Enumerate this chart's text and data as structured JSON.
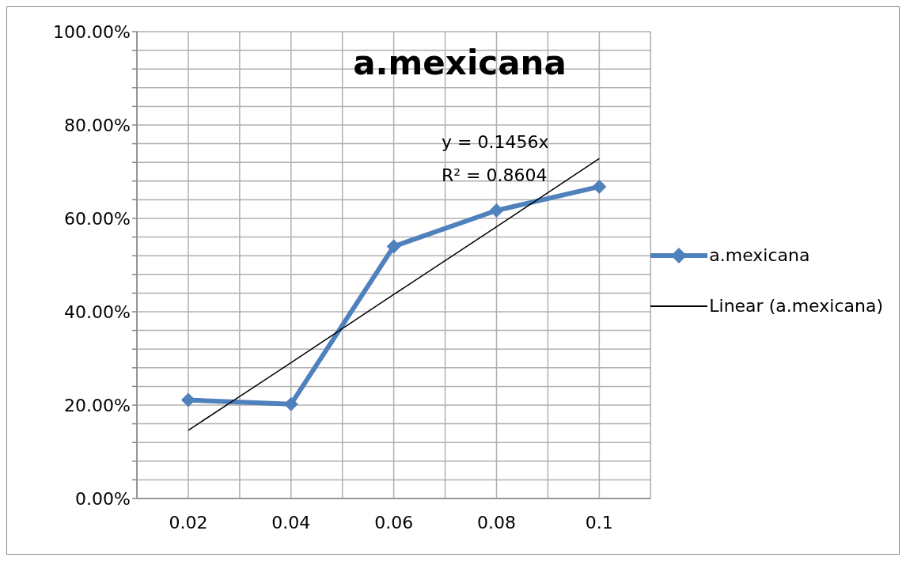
{
  "chart_data": {
    "type": "line",
    "title": "a.mexicana",
    "categories": [
      "0.02",
      "0.04",
      "0.06",
      "0.08",
      "0.1"
    ],
    "series": [
      {
        "name": "a.mexicana",
        "color": "#4f81bd",
        "marker": "diamond",
        "values": [
          21.1,
          20.2,
          54.0,
          61.7,
          66.8
        ]
      },
      {
        "name": "Linear (a.mexicana)",
        "color": "#000000",
        "marker": "none",
        "values": [
          14.6,
          29.1,
          43.7,
          58.2,
          72.8
        ]
      }
    ],
    "ylim": [
      0,
      100
    ],
    "yticks": [
      {
        "value": 0,
        "label": "0.00%"
      },
      {
        "value": 4,
        "label": null
      },
      {
        "value": 8,
        "label": null
      },
      {
        "value": 12,
        "label": null
      },
      {
        "value": 16,
        "label": null
      },
      {
        "value": 20,
        "label": "20.00%"
      },
      {
        "value": 24,
        "label": null
      },
      {
        "value": 28,
        "label": null
      },
      {
        "value": 32,
        "label": null
      },
      {
        "value": 36,
        "label": null
      },
      {
        "value": 40,
        "label": "40.00%"
      },
      {
        "value": 44,
        "label": null
      },
      {
        "value": 48,
        "label": null
      },
      {
        "value": 52,
        "label": null
      },
      {
        "value": 56,
        "label": null
      },
      {
        "value": 60,
        "label": "60.00%"
      },
      {
        "value": 64,
        "label": null
      },
      {
        "value": 68,
        "label": null
      },
      {
        "value": 72,
        "label": null
      },
      {
        "value": 76,
        "label": null
      },
      {
        "value": 80,
        "label": "80.00%"
      },
      {
        "value": 84,
        "label": null
      },
      {
        "value": 88,
        "label": null
      },
      {
        "value": 92,
        "label": null
      },
      {
        "value": 96,
        "label": null
      },
      {
        "value": 100,
        "label": "100.00%"
      }
    ],
    "annotations": [
      "y = 0.1456x",
      "R² = 0.8604"
    ],
    "grid": true,
    "legend": "right"
  }
}
